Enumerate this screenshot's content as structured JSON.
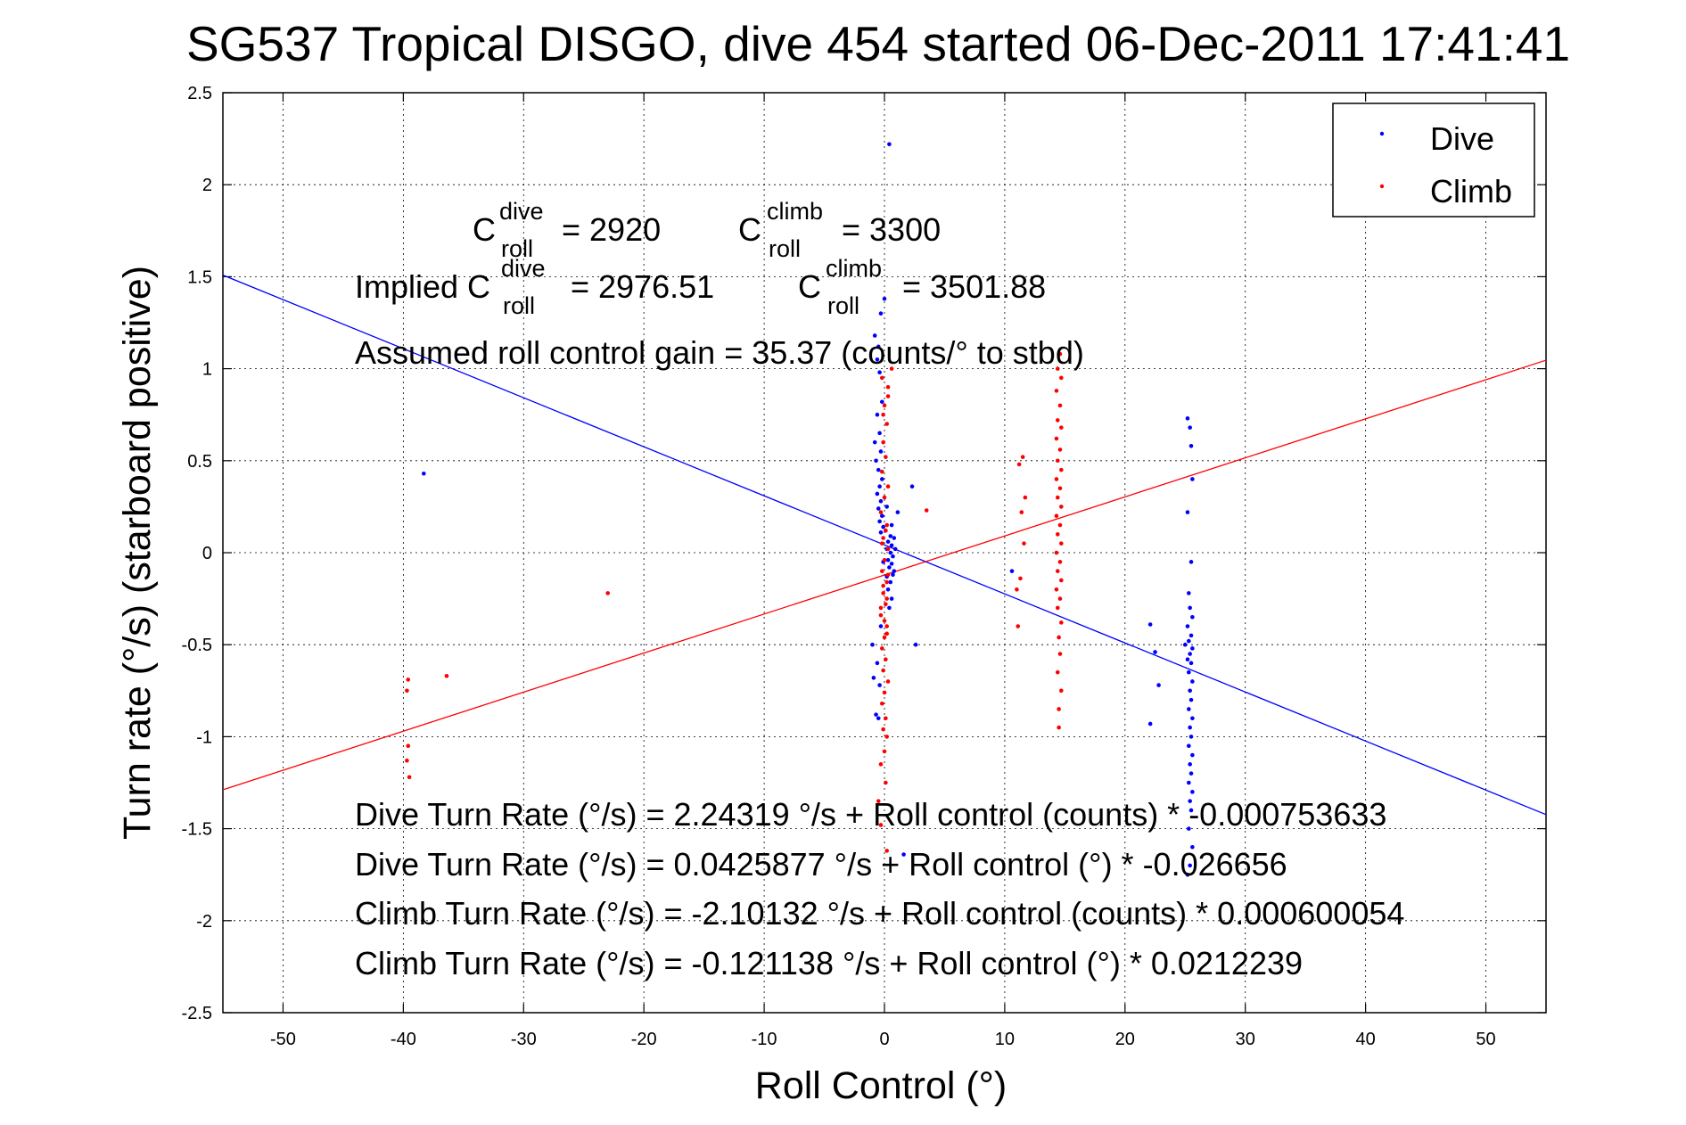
{
  "chart_data": {
    "type": "scatter",
    "title": "SG537 Tropical DISGO, dive 454 started 06-Dec-2011 17:41:41",
    "xlabel": "Roll Control (°)",
    "ylabel": "Turn rate (°/s) (starboard positive)",
    "xlim": [
      -55,
      55
    ],
    "ylim": [
      -2.5,
      2.5
    ],
    "x_ticks": [
      -50,
      -40,
      -30,
      -20,
      -10,
      0,
      10,
      20,
      30,
      40,
      50
    ],
    "y_ticks": [
      -2.5,
      -2,
      -1.5,
      -1,
      -0.5,
      0,
      0.5,
      1,
      1.5,
      2,
      2.5
    ],
    "x_tick_labels": [
      "-50",
      "-40",
      "-30",
      "-20",
      "-10",
      "0",
      "10",
      "20",
      "30",
      "40",
      "50"
    ],
    "y_tick_labels": [
      "-2.5",
      "-2",
      "-1.5",
      "-1",
      "-0.5",
      "0",
      "0.5",
      "1",
      "1.5",
      "2",
      "2.5"
    ],
    "grid": true,
    "legend_position": "top-right",
    "series": [
      {
        "name": "Dive",
        "color": "#0000ff",
        "points": [
          [
            -38.3,
            0.43
          ],
          [
            0.4,
            2.22
          ],
          [
            -0.8,
            1.18
          ],
          [
            -0.5,
            1.12
          ],
          [
            -0.6,
            1.05
          ],
          [
            -0.4,
            0.98
          ],
          [
            0.0,
            1.38
          ],
          [
            -0.3,
            1.3
          ],
          [
            -0.2,
            0.82
          ],
          [
            -0.6,
            0.75
          ],
          [
            -0.4,
            0.65
          ],
          [
            -0.8,
            0.6
          ],
          [
            -0.3,
            0.55
          ],
          [
            -0.7,
            0.5
          ],
          [
            -0.5,
            0.45
          ],
          [
            -0.2,
            0.4
          ],
          [
            -0.4,
            0.36
          ],
          [
            -0.6,
            0.32
          ],
          [
            -0.3,
            0.28
          ],
          [
            -0.5,
            0.24
          ],
          [
            -0.2,
            0.2
          ],
          [
            -0.4,
            0.17
          ],
          [
            -0.1,
            0.14
          ],
          [
            -0.3,
            0.11
          ],
          [
            0.5,
            0.09
          ],
          [
            0.3,
            0.06
          ],
          [
            0.6,
            0.04
          ],
          [
            0.2,
            0.02
          ],
          [
            0.5,
            0.0
          ],
          [
            0.7,
            -0.02
          ],
          [
            0.3,
            -0.04
          ],
          [
            0.6,
            -0.06
          ],
          [
            0.4,
            -0.08
          ],
          [
            0.8,
            -0.1
          ],
          [
            0.2,
            -0.13
          ],
          [
            0.5,
            -0.16
          ],
          [
            0.3,
            -0.2
          ],
          [
            0.6,
            -0.25
          ],
          [
            0.4,
            -0.3
          ],
          [
            0.2,
            0.25
          ],
          [
            0.6,
            0.15
          ],
          [
            0.8,
            0.08
          ],
          [
            0.7,
            -0.12
          ],
          [
            0.9,
            0.02
          ],
          [
            0.1,
            0.12
          ],
          [
            -0.1,
            -0.05
          ],
          [
            1.1,
            0.22
          ],
          [
            2.3,
            0.36
          ],
          [
            2.6,
            -0.5
          ],
          [
            -1.0,
            -0.5
          ],
          [
            -0.9,
            -0.68
          ],
          [
            -0.7,
            -0.88
          ],
          [
            -0.5,
            -0.9
          ],
          [
            -0.4,
            -0.72
          ],
          [
            1.6,
            -1.64
          ],
          [
            -0.3,
            -0.4
          ],
          [
            -0.6,
            -0.6
          ],
          [
            25.2,
            0.73
          ],
          [
            25.4,
            0.68
          ],
          [
            25.5,
            0.58
          ],
          [
            25.6,
            0.4
          ],
          [
            25.2,
            0.22
          ],
          [
            25.5,
            -0.05
          ],
          [
            25.3,
            -0.22
          ],
          [
            25.4,
            -0.3
          ],
          [
            25.6,
            -0.35
          ],
          [
            25.2,
            -0.4
          ],
          [
            25.5,
            -0.45
          ],
          [
            25.3,
            -0.48
          ],
          [
            25.6,
            -0.52
          ],
          [
            25.4,
            -0.55
          ],
          [
            25.2,
            -0.58
          ],
          [
            25.5,
            -0.6
          ],
          [
            25.3,
            -0.65
          ],
          [
            25.6,
            -0.7
          ],
          [
            25.4,
            -0.75
          ],
          [
            25.5,
            -0.8
          ],
          [
            25.3,
            -0.85
          ],
          [
            25.6,
            -0.9
          ],
          [
            25.4,
            -0.95
          ],
          [
            25.5,
            -1.0
          ],
          [
            25.3,
            -1.05
          ],
          [
            25.6,
            -1.1
          ],
          [
            25.4,
            -1.15
          ],
          [
            25.5,
            -1.2
          ],
          [
            25.3,
            -1.25
          ],
          [
            25.6,
            -1.3
          ],
          [
            25.4,
            -1.35
          ],
          [
            25.5,
            -1.4
          ],
          [
            25.3,
            -1.5
          ],
          [
            25.6,
            -1.6
          ],
          [
            25.4,
            -1.7
          ],
          [
            25.2,
            -1.75
          ],
          [
            25.0,
            -0.5
          ],
          [
            22.1,
            -0.39
          ],
          [
            22.5,
            -0.54
          ],
          [
            22.8,
            -0.72
          ],
          [
            22.1,
            -0.93
          ],
          [
            10.6,
            -0.1
          ]
        ]
      },
      {
        "name": "Climb",
        "color": "#ff0000",
        "points": [
          [
            -39.6,
            -0.69
          ],
          [
            -39.7,
            -0.75
          ],
          [
            -39.6,
            -1.05
          ],
          [
            -39.7,
            -1.13
          ],
          [
            -39.5,
            -1.22
          ],
          [
            -36.4,
            -0.67
          ],
          [
            -23.0,
            -0.22
          ],
          [
            3.5,
            0.23
          ],
          [
            -0.5,
            -1.35
          ],
          [
            0.2,
            -1.62
          ],
          [
            -0.3,
            -1.48
          ],
          [
            0.6,
            1.0
          ],
          [
            0.3,
            0.9
          ],
          [
            0.0,
            0.8
          ],
          [
            0.2,
            0.7
          ],
          [
            -0.1,
            0.6
          ],
          [
            0.1,
            0.52
          ],
          [
            -0.2,
            0.44
          ],
          [
            0.3,
            0.36
          ],
          [
            0.0,
            0.3
          ],
          [
            -0.3,
            0.22
          ],
          [
            0.2,
            0.15
          ],
          [
            -0.1,
            0.08
          ],
          [
            0.3,
            0.02
          ],
          [
            0.0,
            -0.04
          ],
          [
            -0.2,
            -0.1
          ],
          [
            0.2,
            -0.16
          ],
          [
            -0.1,
            -0.22
          ],
          [
            0.1,
            -0.28
          ],
          [
            -0.3,
            -0.34
          ],
          [
            0.2,
            -0.4
          ],
          [
            0.0,
            -0.46
          ],
          [
            -0.2,
            -0.52
          ],
          [
            0.1,
            -0.58
          ],
          [
            -0.1,
            -0.64
          ],
          [
            0.3,
            -0.7
          ],
          [
            0.0,
            -0.76
          ],
          [
            -0.2,
            -0.82
          ],
          [
            0.1,
            -0.9
          ],
          [
            -0.1,
            -0.96
          ],
          [
            0.2,
            -1.0
          ],
          [
            0.0,
            -1.08
          ],
          [
            -0.3,
            -1.15
          ],
          [
            0.1,
            -1.25
          ],
          [
            -0.2,
            0.95
          ],
          [
            0.3,
            0.85
          ],
          [
            -0.1,
            0.75
          ],
          [
            0.1,
            0.12
          ],
          [
            -0.2,
            0.05
          ],
          [
            0.3,
            -0.12
          ],
          [
            -0.1,
            -0.18
          ],
          [
            0.2,
            -0.25
          ],
          [
            -0.3,
            -0.3
          ],
          [
            0.0,
            -0.37
          ],
          [
            0.2,
            -0.44
          ],
          [
            14.6,
            1.08
          ],
          [
            14.4,
            1.0
          ],
          [
            14.7,
            0.95
          ],
          [
            14.3,
            0.88
          ],
          [
            14.6,
            0.8
          ],
          [
            14.4,
            0.72
          ],
          [
            14.7,
            0.68
          ],
          [
            14.3,
            0.62
          ],
          [
            14.6,
            0.56
          ],
          [
            14.4,
            0.5
          ],
          [
            14.7,
            0.45
          ],
          [
            14.3,
            0.4
          ],
          [
            14.6,
            0.35
          ],
          [
            14.4,
            0.3
          ],
          [
            14.7,
            0.25
          ],
          [
            14.3,
            0.2
          ],
          [
            14.6,
            0.15
          ],
          [
            14.4,
            0.1
          ],
          [
            14.7,
            0.05
          ],
          [
            14.3,
            0.0
          ],
          [
            14.6,
            -0.05
          ],
          [
            14.4,
            -0.1
          ],
          [
            14.7,
            -0.15
          ],
          [
            14.3,
            -0.2
          ],
          [
            14.6,
            -0.25
          ],
          [
            14.4,
            -0.3
          ],
          [
            14.7,
            -0.38
          ],
          [
            14.5,
            -0.46
          ],
          [
            14.6,
            -0.55
          ],
          [
            14.4,
            -0.65
          ],
          [
            14.7,
            -0.75
          ],
          [
            14.5,
            -0.95
          ],
          [
            14.5,
            -0.85
          ],
          [
            11.5,
            0.52
          ],
          [
            11.2,
            0.48
          ],
          [
            11.7,
            0.3
          ],
          [
            11.4,
            0.22
          ],
          [
            11.6,
            0.05
          ],
          [
            11.3,
            -0.14
          ],
          [
            11.0,
            -0.2
          ],
          [
            11.1,
            -0.4
          ]
        ]
      }
    ],
    "fit_lines": [
      {
        "name": "Dive fit",
        "color": "#0000ff",
        "intercept": 0.0425877,
        "slope": -0.026656
      },
      {
        "name": "Climb fit",
        "color": "#ff0000",
        "intercept": -0.121138,
        "slope": 0.0212239
      }
    ]
  },
  "annotations": {
    "c_roll_sym": "C",
    "roll_sub": "roll",
    "dive_sup": "dive",
    "climb_sup": "climb",
    "c_dive_value": "= 2920",
    "c_climb_value": "= 3300",
    "implied_prefix": "Implied C",
    "implied_dive_value": "= 2976.51",
    "implied_climb_value": "= 3501.88",
    "gain_line": "Assumed roll control gain = 35.37 (counts/° to stbd)",
    "eq_dive_counts": "Dive Turn Rate (°/s) = 2.24319 °/s + Roll control (counts) * -0.000753633",
    "eq_dive_deg": "Dive Turn Rate (°/s) = 0.0425877 °/s + Roll control (°) * -0.026656",
    "eq_climb_counts": "Climb Turn Rate (°/s) = -2.10132 °/s + Roll control (counts) * 0.000600054",
    "eq_climb_deg": "Climb Turn Rate (°/s) = -0.121138 °/s + Roll control (°) * 0.0212239"
  }
}
